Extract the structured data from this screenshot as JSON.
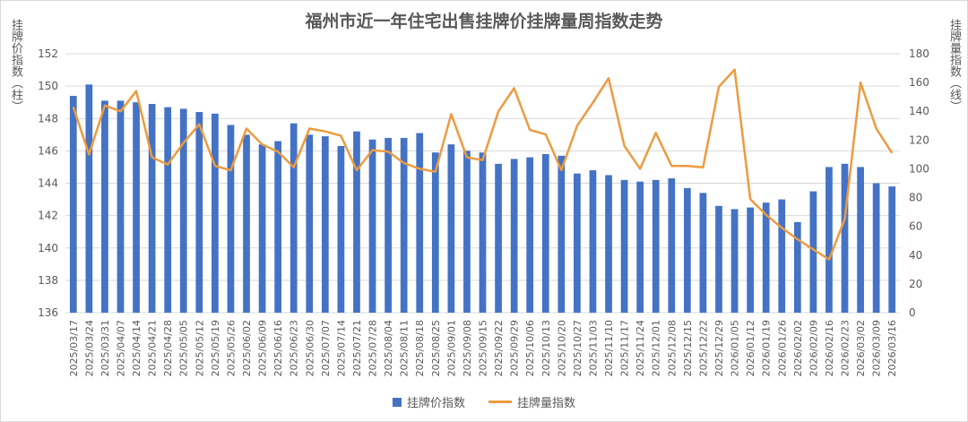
{
  "chart_data": {
    "type": "bar+line",
    "title": "福州市近一年住宅出售挂牌价挂牌量周指数走势",
    "ylabel_left": "挂牌价指数（柱）",
    "ylabel_right": "挂牌量指数（线）",
    "ylim_left": [
      136,
      152
    ],
    "yticks_left": [
      136,
      138,
      140,
      142,
      144,
      146,
      148,
      150,
      152
    ],
    "ylim_right": [
      0,
      180
    ],
    "yticks_right": [
      0,
      20,
      40,
      60,
      80,
      100,
      120,
      140,
      160,
      180
    ],
    "grid": true,
    "legend_position": "bottom",
    "categories": [
      "2025/03/17",
      "2025/03/24",
      "2025/03/31",
      "2025/04/07",
      "2025/04/14",
      "2025/04/21",
      "2025/04/28",
      "2025/05/05",
      "2025/05/12",
      "2025/05/19",
      "2025/05/26",
      "2025/06/02",
      "2025/06/09",
      "2025/06/16",
      "2025/06/23",
      "2025/06/30",
      "2025/07/07",
      "2025/07/14",
      "2025/07/21",
      "2025/07/28",
      "2025/08/04",
      "2025/08/11",
      "2025/08/18",
      "2025/08/25",
      "2025/09/01",
      "2025/09/08",
      "2025/09/15",
      "2025/09/22",
      "2025/09/29",
      "2025/10/06",
      "2025/10/13",
      "2025/10/20",
      "2025/10/27",
      "2025/11/03",
      "2025/11/10",
      "2025/11/17",
      "2025/11/24",
      "2025/12/01",
      "2025/12/08",
      "2025/12/15",
      "2025/12/22",
      "2025/12/29",
      "2026/01/05",
      "2026/01/12",
      "2026/01/19",
      "2026/01/26",
      "2026/02/02",
      "2026/02/09",
      "2026/02/16",
      "2026/02/23",
      "2026/03/02",
      "2026/03/09",
      "2026/03/16"
    ],
    "series": [
      {
        "name": "挂牌价指数",
        "type": "bar",
        "axis": "left",
        "color": "#4472C4",
        "values": [
          149.4,
          150.1,
          149.1,
          149.1,
          149.0,
          148.9,
          148.7,
          148.6,
          148.4,
          148.3,
          147.6,
          147.0,
          146.4,
          146.6,
          147.7,
          147.0,
          146.9,
          146.3,
          147.2,
          146.7,
          146.8,
          146.8,
          147.1,
          145.9,
          146.4,
          146.0,
          145.9,
          145.2,
          145.5,
          145.6,
          145.8,
          145.7,
          144.6,
          144.8,
          144.5,
          144.2,
          144.1,
          144.2,
          144.3,
          143.7,
          143.4,
          142.6,
          142.4,
          142.5,
          142.8,
          143.0,
          141.6,
          143.5,
          145.0,
          145.2,
          145.0,
          144.0,
          143.8
        ]
      },
      {
        "name": "挂牌量指数",
        "type": "line",
        "axis": "right",
        "color": "#ED9B40",
        "values": [
          143,
          110,
          144,
          140,
          154,
          108,
          103,
          118,
          131,
          102,
          99,
          128,
          117,
          112,
          101,
          128,
          126,
          123,
          99,
          113,
          112,
          104,
          100,
          98,
          138,
          108,
          106,
          140,
          156,
          127,
          124,
          99,
          130,
          146,
          163,
          116,
          100,
          125,
          102,
          102,
          101,
          157,
          169,
          79,
          68,
          59,
          51,
          44,
          37,
          65,
          160,
          128,
          111
        ]
      }
    ]
  }
}
